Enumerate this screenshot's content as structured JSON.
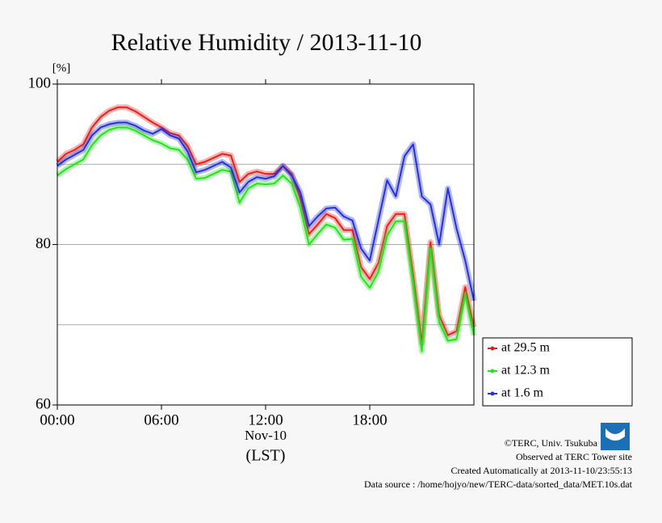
{
  "chart_data": {
    "type": "line",
    "title": "Relative Humidity / 2013-11-10",
    "y_unit": "[%]",
    "x_date": "Nov-10",
    "x_label": "(LST)",
    "x": [
      0,
      0.5,
      1,
      1.5,
      2,
      2.5,
      3,
      3.5,
      4,
      4.5,
      5,
      5.5,
      6,
      6.5,
      7,
      7.5,
      8,
      8.5,
      9,
      9.5,
      10,
      10.5,
      11,
      11.5,
      12,
      12.5,
      13,
      13.5,
      14,
      14.5,
      15,
      15.5,
      16,
      16.5,
      17,
      17.5,
      18,
      18.5,
      19,
      19.5,
      20,
      20.5,
      21,
      21.5,
      22,
      22.5,
      23,
      23.5,
      24
    ],
    "series": [
      {
        "name": "at 29.5 m",
        "color": "#e8201c",
        "values": [
          90.3,
          91.3,
          91.8,
          92.5,
          94.6,
          95.9,
          96.7,
          97.1,
          97.1,
          96.6,
          95.9,
          95.2,
          94.6,
          93.9,
          93.6,
          92.3,
          90.0,
          90.3,
          90.8,
          91.3,
          91.1,
          87.8,
          88.8,
          89.1,
          88.8,
          88.8,
          89.8,
          88.8,
          85.8,
          81.3,
          82.5,
          83.8,
          83.3,
          81.8,
          81.8,
          77.2,
          75.7,
          77.7,
          82.3,
          83.8,
          83.8,
          76.2,
          67.7,
          80.3,
          71.2,
          68.7,
          69.2,
          74.7,
          69.7
        ]
      },
      {
        "name": "at 12.3 m",
        "color": "#28e020",
        "values": [
          88.6,
          89.4,
          90.0,
          90.6,
          92.4,
          93.6,
          94.3,
          94.6,
          94.6,
          94.2,
          93.6,
          93.0,
          92.6,
          92.0,
          91.8,
          90.6,
          88.2,
          88.3,
          88.8,
          89.3,
          89.1,
          85.2,
          87.0,
          87.6,
          87.5,
          87.6,
          88.6,
          87.6,
          84.6,
          80.0,
          81.3,
          82.5,
          82.1,
          80.6,
          80.7,
          76.0,
          74.6,
          76.6,
          81.1,
          82.9,
          82.9,
          75.2,
          66.7,
          79.5,
          70.3,
          68.0,
          68.2,
          73.8,
          68.7
        ]
      },
      {
        "name": "at 1.6 m",
        "color": "#2430d8",
        "values": [
          89.8,
          90.6,
          91.2,
          91.8,
          93.6,
          94.6,
          95.0,
          95.2,
          95.2,
          94.8,
          94.2,
          93.8,
          94.4,
          93.6,
          93.2,
          91.6,
          89.0,
          89.3,
          89.8,
          90.3,
          89.6,
          86.5,
          87.8,
          88.4,
          88.2,
          88.5,
          89.8,
          88.6,
          86.5,
          82.3,
          83.5,
          84.5,
          84.6,
          83.5,
          83.0,
          79.5,
          78.0,
          83.0,
          88.0,
          86.0,
          91.0,
          92.5,
          86.0,
          85.0,
          80.0,
          87.0,
          82.0,
          78.0,
          73.0
        ]
      }
    ],
    "xlim": [
      0,
      24
    ],
    "xticks": [
      {
        "value": 0,
        "label": "00:00"
      },
      {
        "value": 6,
        "label": "06:00"
      },
      {
        "value": 12,
        "label": "12:00"
      },
      {
        "value": 18,
        "label": "18:00"
      }
    ],
    "ylim": [
      60,
      100
    ],
    "yticks": [
      60,
      80,
      100
    ],
    "grid_lines": [
      70,
      80,
      90
    ],
    "legend": "lower-right-outside",
    "credits": [
      "©TERC, Univ. Tsukuba",
      "Observed at TERC Tower site",
      "Created Automatically at 2013-11-10/23:55:13",
      "Data source : /home/hojyo/new/TERC-data/sorted_data/MET.10s.dat"
    ]
  }
}
